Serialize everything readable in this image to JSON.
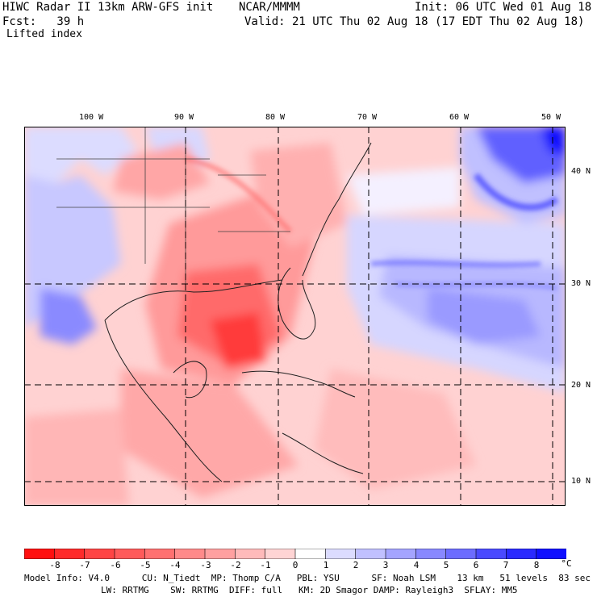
{
  "header": {
    "model_title": "HIWC Radar II 13km ARW-GFS init",
    "center": "NCAR/MMMM",
    "init": "Init: 06 UTC Wed 01 Aug 18",
    "fcst": "Fcst:   39 h",
    "valid": "Valid: 21 UTC Thu 02 Aug 18 (17 EDT Thu 02 Aug 18)",
    "field": "Lifted index"
  },
  "map": {
    "lon_labels": [
      "100 W",
      "90 W",
      "80 W",
      "70 W",
      "60 W",
      "50 W"
    ],
    "lat_labels": [
      "40 N",
      "30 N",
      "20 N",
      "10 N"
    ]
  },
  "colorbar": {
    "labels": [
      "-8",
      "-7",
      "-6",
      "-5",
      "-4",
      "-3",
      "-2",
      "-1",
      "0",
      "1",
      "2",
      "3",
      "4",
      "5",
      "6",
      "7",
      "8"
    ],
    "unit": "°C",
    "colors": [
      "#ff1010",
      "#ff2a2a",
      "#ff4444",
      "#ff5a5a",
      "#ff7070",
      "#ff8a8a",
      "#ffa0a0",
      "#ffbaba",
      "#ffd4d4",
      "#ffffff",
      "#dcdcff",
      "#c0c0ff",
      "#a4a4ff",
      "#8888ff",
      "#6c6cff",
      "#4a4aff",
      "#2a2aff",
      "#1010ff"
    ]
  },
  "footer": {
    "line1": "Model Info: V4.0      CU: N_Tiedt  MP: Thomp C/A   PBL: YSU      SF: Noah LSM    13 km   51 levels  83 sec",
    "line2": "LW: RRTMG    SW: RRTMG  DIFF: full   KM: 2D Smagor DAMP: Rayleigh3  SFLAY: MM5"
  }
}
